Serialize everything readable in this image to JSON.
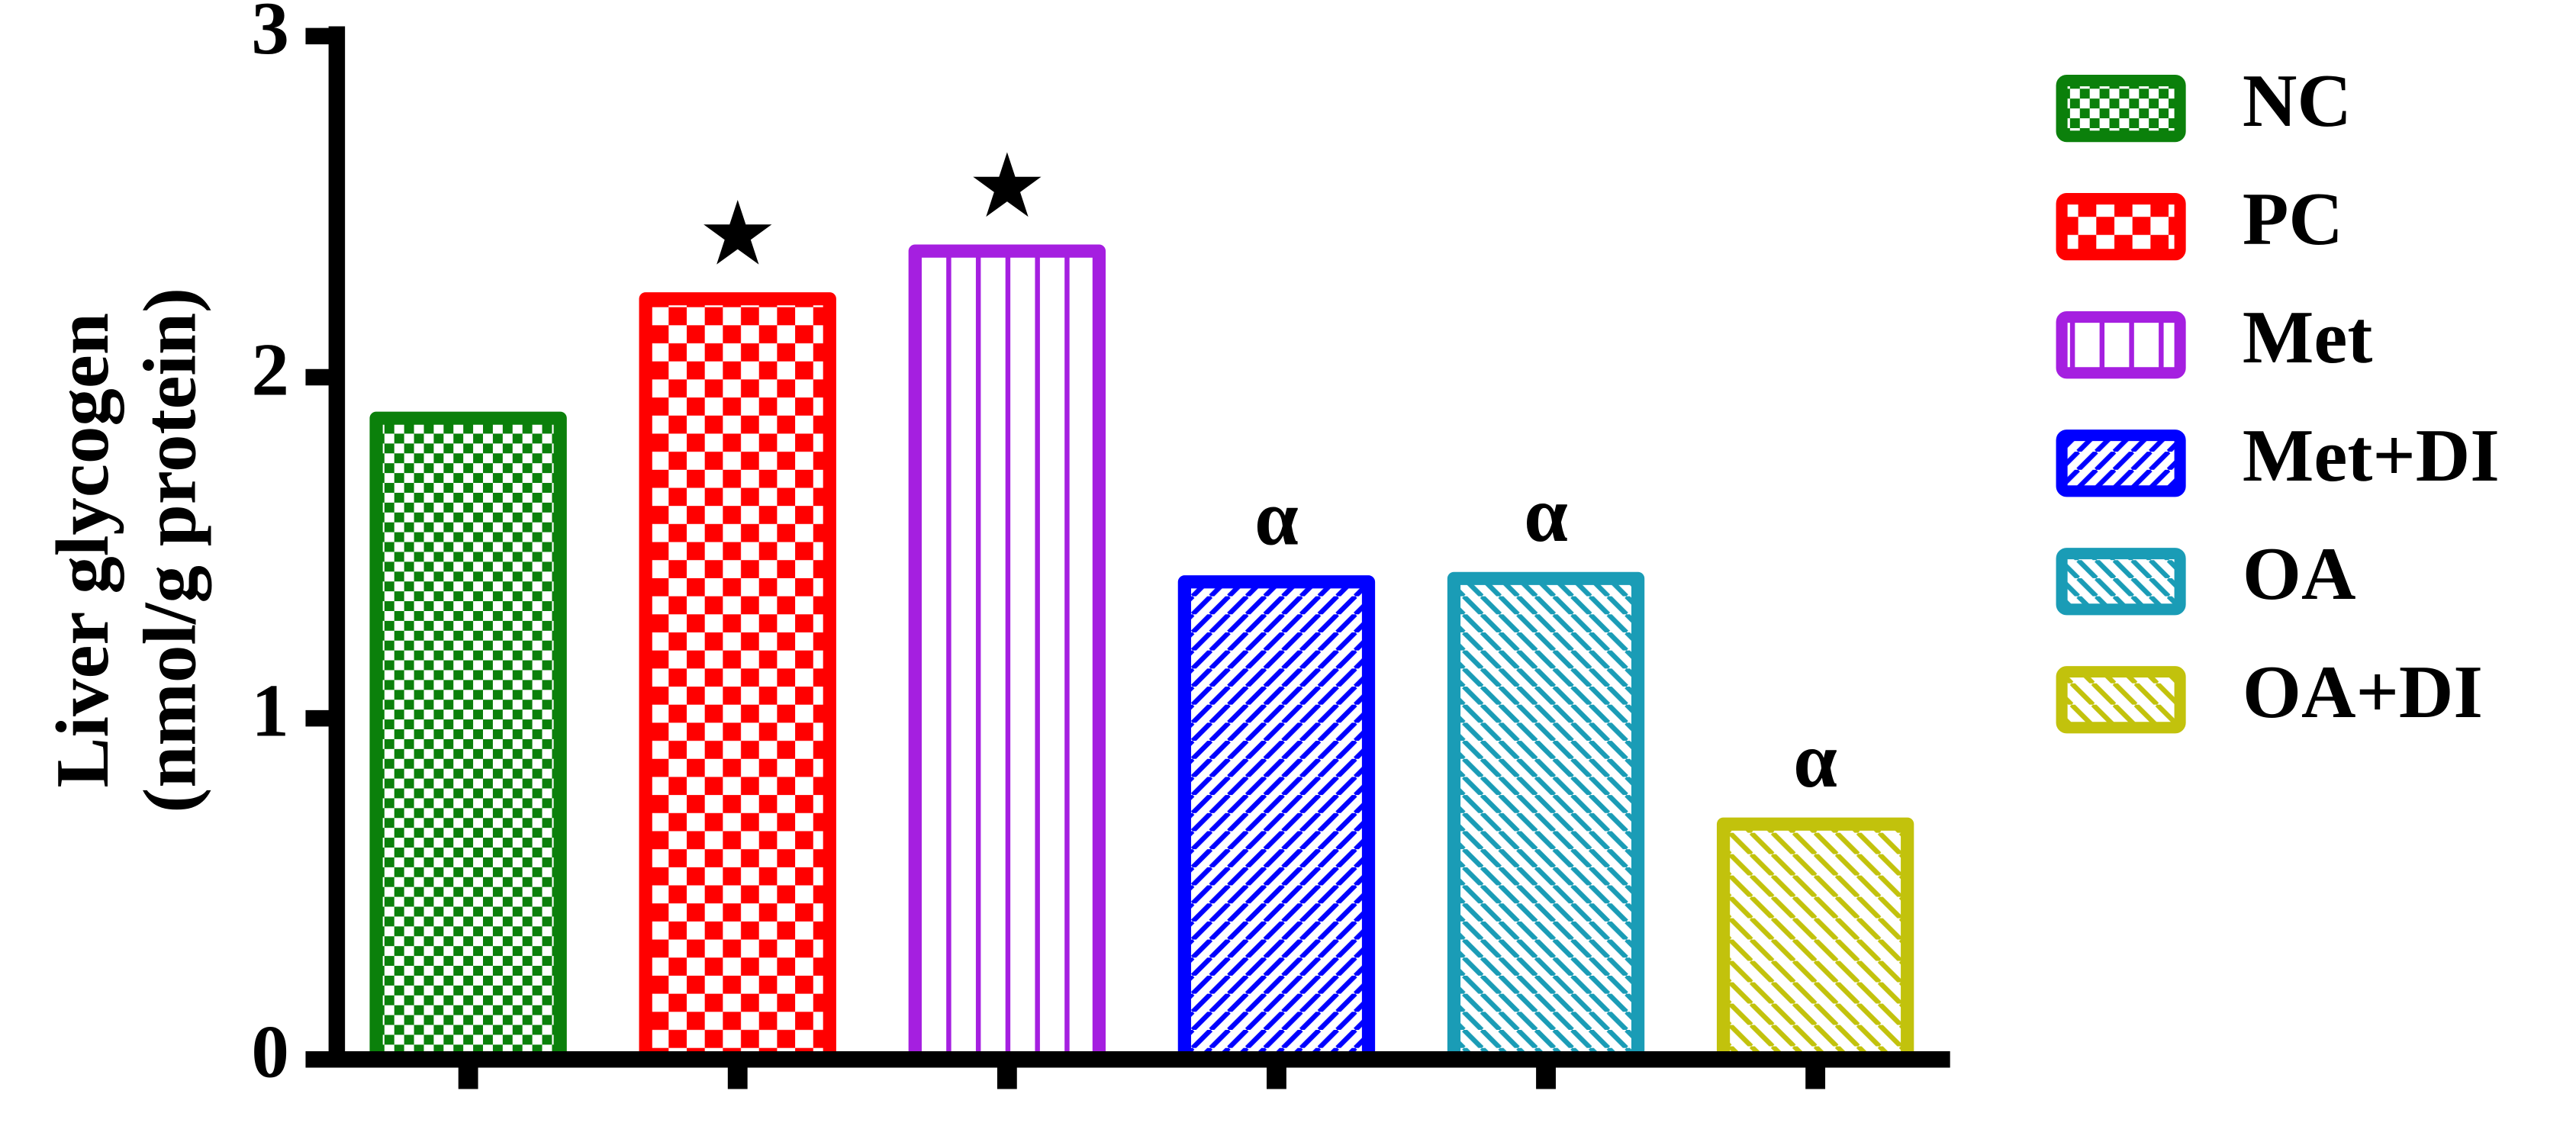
{
  "chart_data": {
    "type": "bar",
    "ylabel": [
      "Liver glycogen",
      "(nmol/g protein)"
    ],
    "ylim": [
      0,
      3
    ],
    "yticks": [
      0,
      1,
      2,
      3
    ],
    "grid": false,
    "legend": "right",
    "series": [
      {
        "name": "NC",
        "color": "#0b800b",
        "hatch": "fine-checker",
        "values": [
          1.88
        ]
      },
      {
        "name": "PC",
        "color": "#ff0000",
        "hatch": "checker",
        "values": [
          2.23
        ],
        "annotation": "★"
      },
      {
        "name": "Met",
        "color": "#a51fe0",
        "hatch": "vertical",
        "values": [
          2.37
        ],
        "annotation": "★"
      },
      {
        "name": "Met+DI",
        "color": "#0000ff",
        "hatch": "diagonal-up",
        "values": [
          1.4
        ],
        "annotation": "α"
      },
      {
        "name": "OA",
        "color": "#1a9cb6",
        "hatch": "diagonal-down",
        "values": [
          1.41
        ],
        "annotation": "α"
      },
      {
        "name": "OA+DI",
        "color": "#c2c20c",
        "hatch": "wide-diagonal-down",
        "values": [
          0.69
        ],
        "annotation": "α"
      }
    ]
  }
}
